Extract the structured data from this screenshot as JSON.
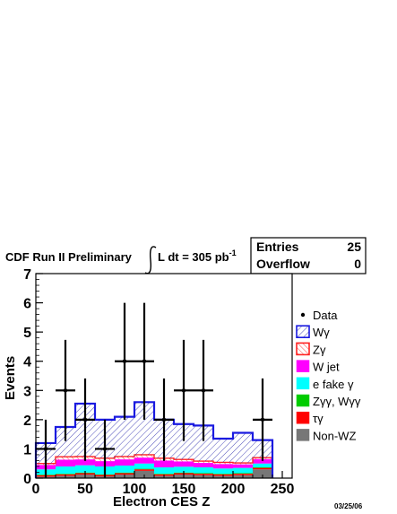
{
  "header": {
    "title_text": "CDF Run II Preliminary",
    "lumi_text": "L dt = 305 pb",
    "lumi_exp": "-1"
  },
  "stats": {
    "entries_label": "Entries",
    "entries_value": "25",
    "overflow_label": "Overflow",
    "overflow_value": "0"
  },
  "date": "03/25/06",
  "chart_data": {
    "type": "histogram",
    "xlabel": "Electron CES Z",
    "ylabel": "Events",
    "xlim": [
      0,
      260
    ],
    "ylim": [
      0,
      7
    ],
    "x_ticks": [
      0,
      50,
      100,
      150,
      200,
      250
    ],
    "y_ticks": [
      0,
      1,
      2,
      3,
      4,
      5,
      6,
      7
    ],
    "bin_edges": [
      0,
      20,
      40,
      60,
      80,
      100,
      120,
      140,
      160,
      180,
      200,
      220,
      240
    ],
    "stack": [
      {
        "name": "Non-WZ",
        "color": "#777777",
        "values": [
          0.05,
          0.08,
          0.12,
          0.06,
          0.12,
          0.25,
          0.08,
          0.12,
          0.1,
          0.08,
          0.1,
          0.3
        ]
      },
      {
        "name": "τγ",
        "color": "#ff0000",
        "values": [
          0.05,
          0.05,
          0.05,
          0.05,
          0.05,
          0.05,
          0.05,
          0.05,
          0.05,
          0.05,
          0.05,
          0.05
        ]
      },
      {
        "name": "Zγγ, Wγγ",
        "color": "#00cc00",
        "values": [
          0.02,
          0.02,
          0.02,
          0.02,
          0.02,
          0.02,
          0.02,
          0.02,
          0.02,
          0.02,
          0.02,
          0.02
        ]
      },
      {
        "name": "e fake γ",
        "color": "#00ffff",
        "values": [
          0.18,
          0.25,
          0.25,
          0.27,
          0.24,
          0.18,
          0.22,
          0.2,
          0.2,
          0.18,
          0.18,
          0.13
        ]
      },
      {
        "name": "W jet",
        "color": "#ff00ff",
        "values": [
          0.15,
          0.23,
          0.2,
          0.18,
          0.21,
          0.2,
          0.23,
          0.18,
          0.15,
          0.15,
          0.12,
          0.15
        ]
      },
      {
        "name": "Zγ",
        "color": "#ff4444",
        "values": [
          0.05,
          0.1,
          0.1,
          0.1,
          0.1,
          0.1,
          0.08,
          0.07,
          0.06,
          0.06,
          0.05,
          0.05
        ]
      },
      {
        "name": "Wγ",
        "color": "#2222dd",
        "values": [
          0.7,
          1.02,
          1.81,
          1.32,
          1.36,
          1.8,
          1.32,
          1.21,
          1.22,
          0.81,
          1.03,
          0.6
        ]
      }
    ],
    "data_points": {
      "name": "Data",
      "x": [
        10,
        30,
        50,
        70,
        90,
        110,
        130,
        150,
        170,
        230
      ],
      "y": [
        1,
        3,
        2,
        1,
        4,
        4,
        2,
        3,
        3,
        2
      ],
      "yerr": [
        1,
        1.73,
        1.41,
        1,
        2,
        2,
        1.41,
        1.73,
        1.73,
        1.41
      ],
      "xerr": 10
    },
    "legend": [
      {
        "label": "Data",
        "marker": "dot"
      },
      {
        "label": "Wγ",
        "color": "#2222dd",
        "hatch": true
      },
      {
        "label": "Zγ",
        "color": "#ff4444",
        "hatch": true
      },
      {
        "label": "W jet",
        "color": "#ff00ff"
      },
      {
        "label": "e fake γ",
        "color": "#00ffff"
      },
      {
        "label": "Zγγ, Wγγ",
        "color": "#00cc00"
      },
      {
        "label": "τγ",
        "color": "#ff0000"
      },
      {
        "label": "Non-WZ",
        "color": "#777777"
      }
    ]
  }
}
